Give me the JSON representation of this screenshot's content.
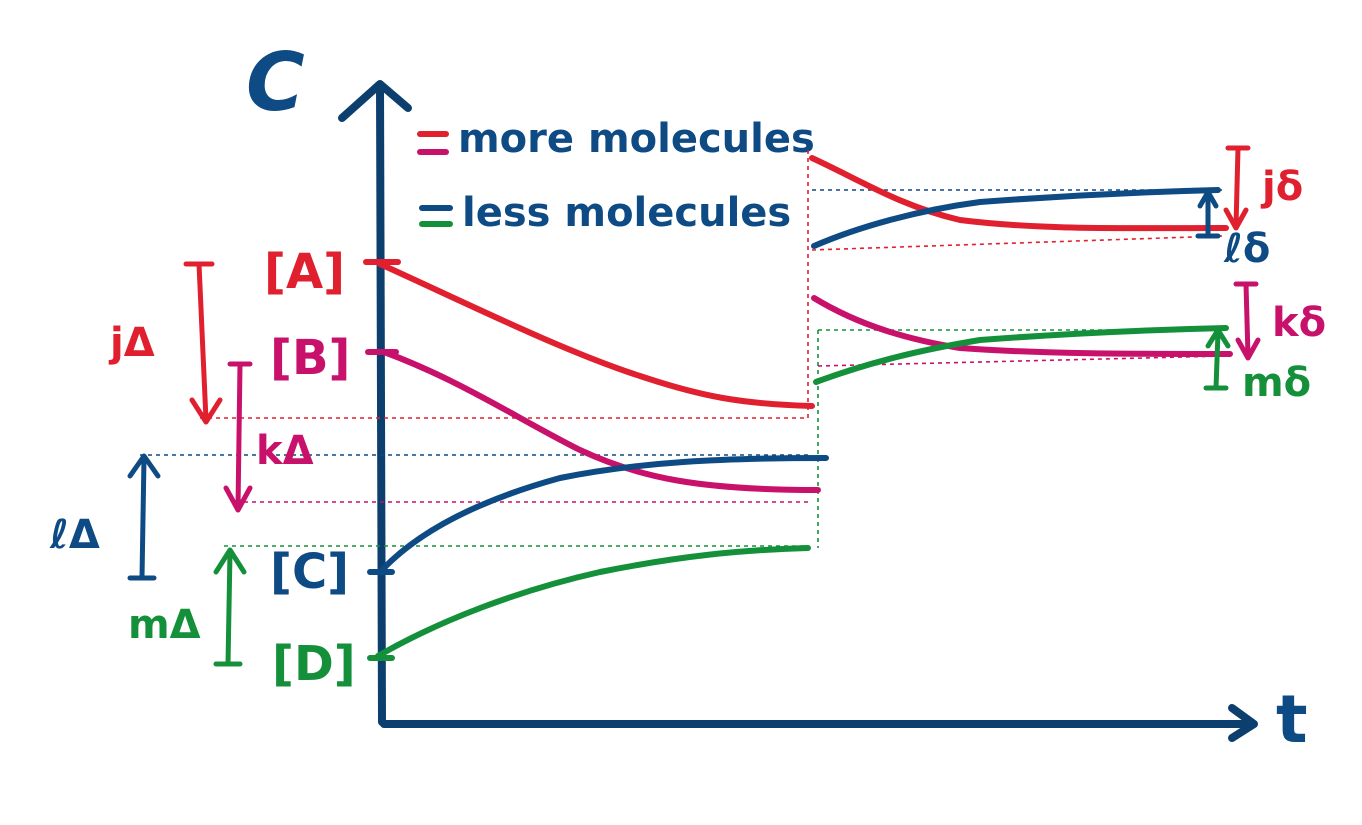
{
  "axes": {
    "y_label": "C",
    "x_label": "t"
  },
  "legend": {
    "more": "more molecules",
    "less": "less molecules"
  },
  "species": {
    "a": "[A]",
    "b": "[B]",
    "c": "[C]",
    "d": "[D]"
  },
  "deltas": {
    "j_big": "jΔ",
    "k_big": "kΔ",
    "l_big": "ℓΔ",
    "m_big": "mΔ",
    "j_small": "jδ",
    "k_small": "kδ",
    "l_small": "ℓδ",
    "m_small": "mδ"
  },
  "colors": {
    "axis": "#0d3f6e",
    "red": "#e0202f",
    "magenta": "#c8116b",
    "blue": "#0e4a83",
    "green": "#15903a"
  }
}
